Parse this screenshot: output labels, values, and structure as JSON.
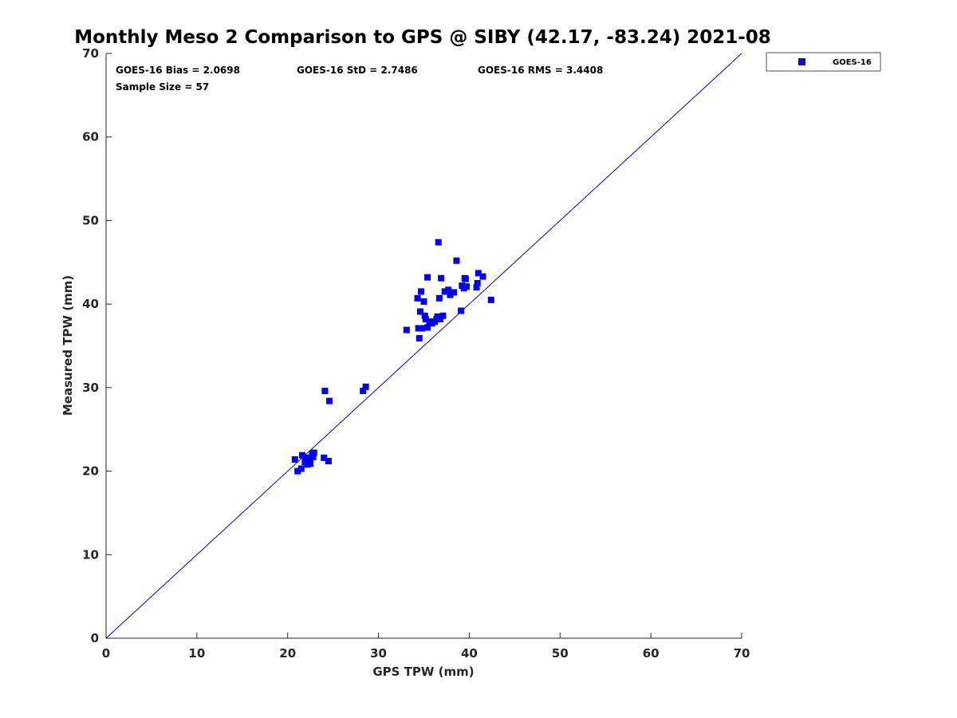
{
  "chart_data": {
    "type": "scatter",
    "title": "Monthly Meso 2 Comparison to GPS @ SIBY (42.17, -83.24) 2021-08",
    "xlabel": "GPS TPW (mm)",
    "ylabel": "Measured TPW (mm)",
    "xlim": [
      0,
      70
    ],
    "ylim": [
      0,
      70
    ],
    "xticks": [
      0,
      10,
      20,
      30,
      40,
      50,
      60,
      70
    ],
    "yticks": [
      0,
      10,
      20,
      30,
      40,
      50,
      60,
      70
    ],
    "grid": false,
    "legend_position": "top-right outside",
    "reference_line": {
      "type": "1:1",
      "color": "#0000cc"
    },
    "stats": {
      "bias": "GOES-16 Bias = 2.0698",
      "std": "GOES-16 StD = 2.7486",
      "rms": "GOES-16 RMS = 3.4408",
      "sample": "Sample Size = 57"
    },
    "series": [
      {
        "name": "GOES-16",
        "color": "#0000ee",
        "marker": "square",
        "points": [
          [
            20.8,
            21.4
          ],
          [
            21.1,
            20.0
          ],
          [
            21.5,
            20.3
          ],
          [
            21.6,
            21.9
          ],
          [
            21.9,
            21.1
          ],
          [
            22.0,
            21.6
          ],
          [
            22.2,
            20.8
          ],
          [
            22.4,
            21.5
          ],
          [
            22.5,
            20.9
          ],
          [
            22.7,
            22.1
          ],
          [
            22.8,
            21.7
          ],
          [
            22.9,
            22.2
          ],
          [
            24.0,
            21.6
          ],
          [
            24.5,
            21.2
          ],
          [
            24.1,
            29.6
          ],
          [
            24.6,
            28.4
          ],
          [
            28.3,
            29.6
          ],
          [
            28.6,
            30.1
          ],
          [
            33.1,
            36.9
          ],
          [
            34.3,
            40.7
          ],
          [
            34.4,
            37.1
          ],
          [
            34.5,
            35.9
          ],
          [
            34.6,
            39.1
          ],
          [
            34.7,
            41.5
          ],
          [
            34.8,
            37.1
          ],
          [
            35.0,
            40.3
          ],
          [
            35.1,
            38.6
          ],
          [
            35.2,
            38.2
          ],
          [
            35.4,
            43.2
          ],
          [
            35.4,
            37.2
          ],
          [
            35.6,
            37.9
          ],
          [
            35.9,
            37.7
          ],
          [
            36.2,
            37.9
          ],
          [
            36.4,
            38.2
          ],
          [
            36.5,
            38.5
          ],
          [
            36.6,
            47.4
          ],
          [
            36.7,
            40.7
          ],
          [
            36.8,
            38.2
          ],
          [
            36.9,
            43.1
          ],
          [
            37.1,
            38.6
          ],
          [
            37.3,
            41.5
          ],
          [
            37.7,
            41.7
          ],
          [
            37.9,
            41.1
          ],
          [
            38.3,
            41.4
          ],
          [
            38.6,
            45.2
          ],
          [
            39.1,
            39.2
          ],
          [
            39.2,
            42.2
          ],
          [
            39.4,
            41.9
          ],
          [
            39.5,
            43.1
          ],
          [
            39.6,
            43.0
          ],
          [
            39.7,
            42.1
          ],
          [
            40.8,
            42.0
          ],
          [
            40.9,
            42.5
          ],
          [
            41.0,
            43.7
          ],
          [
            41.5,
            43.3
          ],
          [
            42.4,
            40.5
          ],
          [
            22.3,
            21.2
          ]
        ]
      }
    ]
  }
}
